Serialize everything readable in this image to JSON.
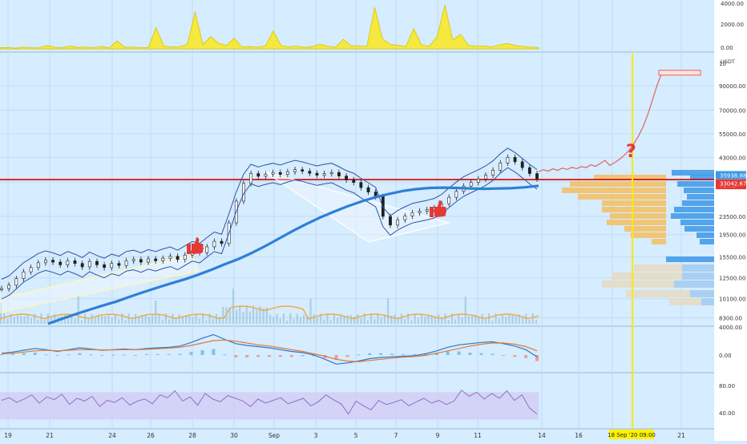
{
  "colors": {
    "background": "#d6ecff",
    "axis_bg": "#ffffff",
    "grid": "#c3dcf3",
    "candles": "#1f1f1f",
    "ma_long": "#2f7fd6",
    "bollinger": "#2d53a6",
    "projection": "#e0645c",
    "support_line": "#d40000",
    "marker_line": "#ffe800",
    "volume_line": "#f1a93e",
    "volume_bar": "#9fc8df",
    "macd_line": "#2e77c6",
    "macd_signal": "#e37733",
    "rsi_line": "#8f6fc6",
    "rsi_band": "#d2c9f3",
    "vp_blue": "#3c98e8",
    "vp_orange": "#f3c05f",
    "vp_grey": "#e6dcc4",
    "thumb": "#e53935",
    "question": "#e53935",
    "label_badge_bg": "#e53935",
    "date_badge_bg": "#fff200"
  },
  "icons": [
    "thumbs-up-icon",
    "thumbs-up-icon",
    "question-mark-icon"
  ],
  "annotations": {
    "question": "?"
  },
  "chart_data": [
    {
      "type": "area",
      "panel": "top-volume",
      "y_ticks": [
        "4000.00",
        "2000.00",
        "0.00"
      ],
      "ylim": [
        0,
        4000
      ],
      "series": [
        {
          "values": [
            90,
            120,
            60,
            150,
            110,
            80,
            300,
            140,
            90,
            260,
            120,
            180,
            100,
            210,
            90,
            700,
            130,
            150,
            100,
            120,
            1900,
            240,
            160,
            180,
            400,
            3300,
            380,
            1100,
            500,
            300,
            950,
            170,
            200,
            140,
            260,
            1600,
            300,
            180,
            240,
            130,
            200,
            430,
            220,
            150,
            860,
            240,
            280,
            210,
            3700,
            900,
            400,
            300,
            220,
            1800,
            350,
            240,
            1100,
            3900,
            780,
            1300,
            320,
            240,
            260,
            180,
            360,
            480,
            300,
            220,
            140,
            120
          ]
        }
      ]
    },
    {
      "type": "line",
      "panel": "price",
      "title": "",
      "unit_label": "USDT",
      "x_ticks": [
        "19",
        "21",
        "24",
        "26",
        "28",
        "30",
        "Sep",
        "3",
        "5",
        "7",
        "9",
        "11",
        "14",
        "16",
        "18",
        "21"
      ],
      "date_badge": "18 Sep '20 09:00",
      "y_ticks": [
        "10",
        "90000.00",
        "70000.00",
        "55000.00",
        "43000.00",
        "33500.00",
        "23500.00",
        "19500.00",
        "15500.00",
        "12500.00",
        "10100.00",
        "8300.00"
      ],
      "price_labels": [
        "35938.88",
        "03:02",
        "33042.67"
      ],
      "y_scale": "log",
      "ylim": [
        7800,
        120000
      ],
      "series": [
        {
          "kind": "candles",
          "values": [
            11200,
            11600,
            12400,
            13300,
            13900,
            14600,
            15000,
            14700,
            14300,
            14900,
            14500,
            14000,
            14800,
            14300,
            13900,
            14500,
            14200,
            14900,
            15100,
            14700,
            15200,
            14900,
            15300,
            15600,
            15100,
            15800,
            16500,
            16200,
            17200,
            18200,
            17800,
            22000,
            27500,
            33000,
            36500,
            35500,
            36300,
            36900,
            36200,
            37200,
            38000,
            37400,
            36600,
            35900,
            36500,
            36900,
            35600,
            34200,
            33300,
            31600,
            30200,
            28800,
            23500,
            21500,
            22700,
            23600,
            24400,
            24800,
            25200,
            25700,
            26800,
            28600,
            30400,
            32100,
            33300,
            34500,
            35900,
            37800,
            40700,
            43100,
            41200,
            38800,
            36500,
            34600
          ]
        },
        {
          "kind": "ma_long",
          "values": [
            7800,
            8200,
            8600,
            9000,
            9400,
            9800,
            10300,
            10800,
            11300,
            11800,
            12300,
            12900,
            13600,
            14400,
            15200,
            16200,
            17400,
            18800,
            20300,
            21800,
            23300,
            24700,
            26100,
            27400,
            28600,
            29600,
            30500,
            31100,
            31500,
            31600,
            31500,
            31300,
            31200,
            31300,
            31400,
            31700,
            32200
          ]
        },
        {
          "kind": "projection",
          "values": [
            37200,
            38000,
            37400,
            38300,
            37700,
            38600,
            38100,
            38900,
            38400,
            39200,
            38800,
            39900,
            39300,
            40500,
            41800,
            39700,
            40800,
            42200,
            43900,
            46200,
            49300,
            53500,
            59000,
            67000,
            78000,
            91000,
            103000
          ]
        }
      ],
      "levels": {
        "support": 34300,
        "target_box": 102000
      },
      "volume_profile": {
        "visible": true,
        "bins": 28
      }
    },
    {
      "type": "line",
      "panel": "macd",
      "y_ticks": [
        "4000.00",
        "0.00"
      ],
      "series": [
        {
          "kind": "macd",
          "values": [
            300,
            500,
            800,
            1100,
            900,
            600,
            900,
            1200,
            1000,
            800,
            900,
            1000,
            900,
            1100,
            1200,
            1300,
            1500,
            2100,
            2800,
            3400,
            2600,
            1900,
            1600,
            1400,
            1200,
            900,
            600,
            400,
            0,
            -700,
            -1500,
            -1300,
            -1000,
            -600,
            -400,
            -300,
            -200,
            -100,
            200,
            700,
            1300,
            1700,
            1900,
            2100,
            2200,
            1900,
            1500,
            900,
            -300
          ]
        },
        {
          "kind": "signal",
          "values": [
            200,
            300,
            500,
            700,
            800,
            700,
            800,
            900,
            900,
            850,
            850,
            900,
            900,
            950,
            1050,
            1150,
            1300,
            1600,
            2000,
            2400,
            2500,
            2300,
            2000,
            1700,
            1500,
            1200,
            900,
            600,
            200,
            -200,
            -700,
            -1000,
            -1100,
            -900,
            -700,
            -500,
            -350,
            -250,
            -50,
            300,
            700,
            1100,
            1500,
            1800,
            2000,
            2000,
            1800,
            1400,
            700
          ]
        }
      ]
    },
    {
      "type": "line",
      "panel": "rsi",
      "y_ticks": [
        "80.00",
        "40.00"
      ],
      "ylim": [
        20,
        95
      ],
      "band": [
        30,
        70
      ],
      "series": [
        {
          "values": [
            58,
            62,
            55,
            60,
            66,
            54,
            63,
            59,
            67,
            52,
            61,
            57,
            64,
            49,
            58,
            55,
            62,
            51,
            57,
            60,
            53,
            66,
            62,
            72,
            57,
            63,
            51,
            68,
            60,
            56,
            65,
            61,
            57,
            49,
            60,
            54,
            58,
            62,
            53,
            57,
            61,
            50,
            56,
            66,
            59,
            53,
            38,
            57,
            50,
            44,
            58,
            52,
            55,
            59,
            50,
            56,
            61,
            54,
            58,
            52,
            57,
            73,
            64,
            70,
            60,
            68,
            61,
            72,
            58,
            66,
            47,
            38
          ]
        }
      ]
    }
  ]
}
